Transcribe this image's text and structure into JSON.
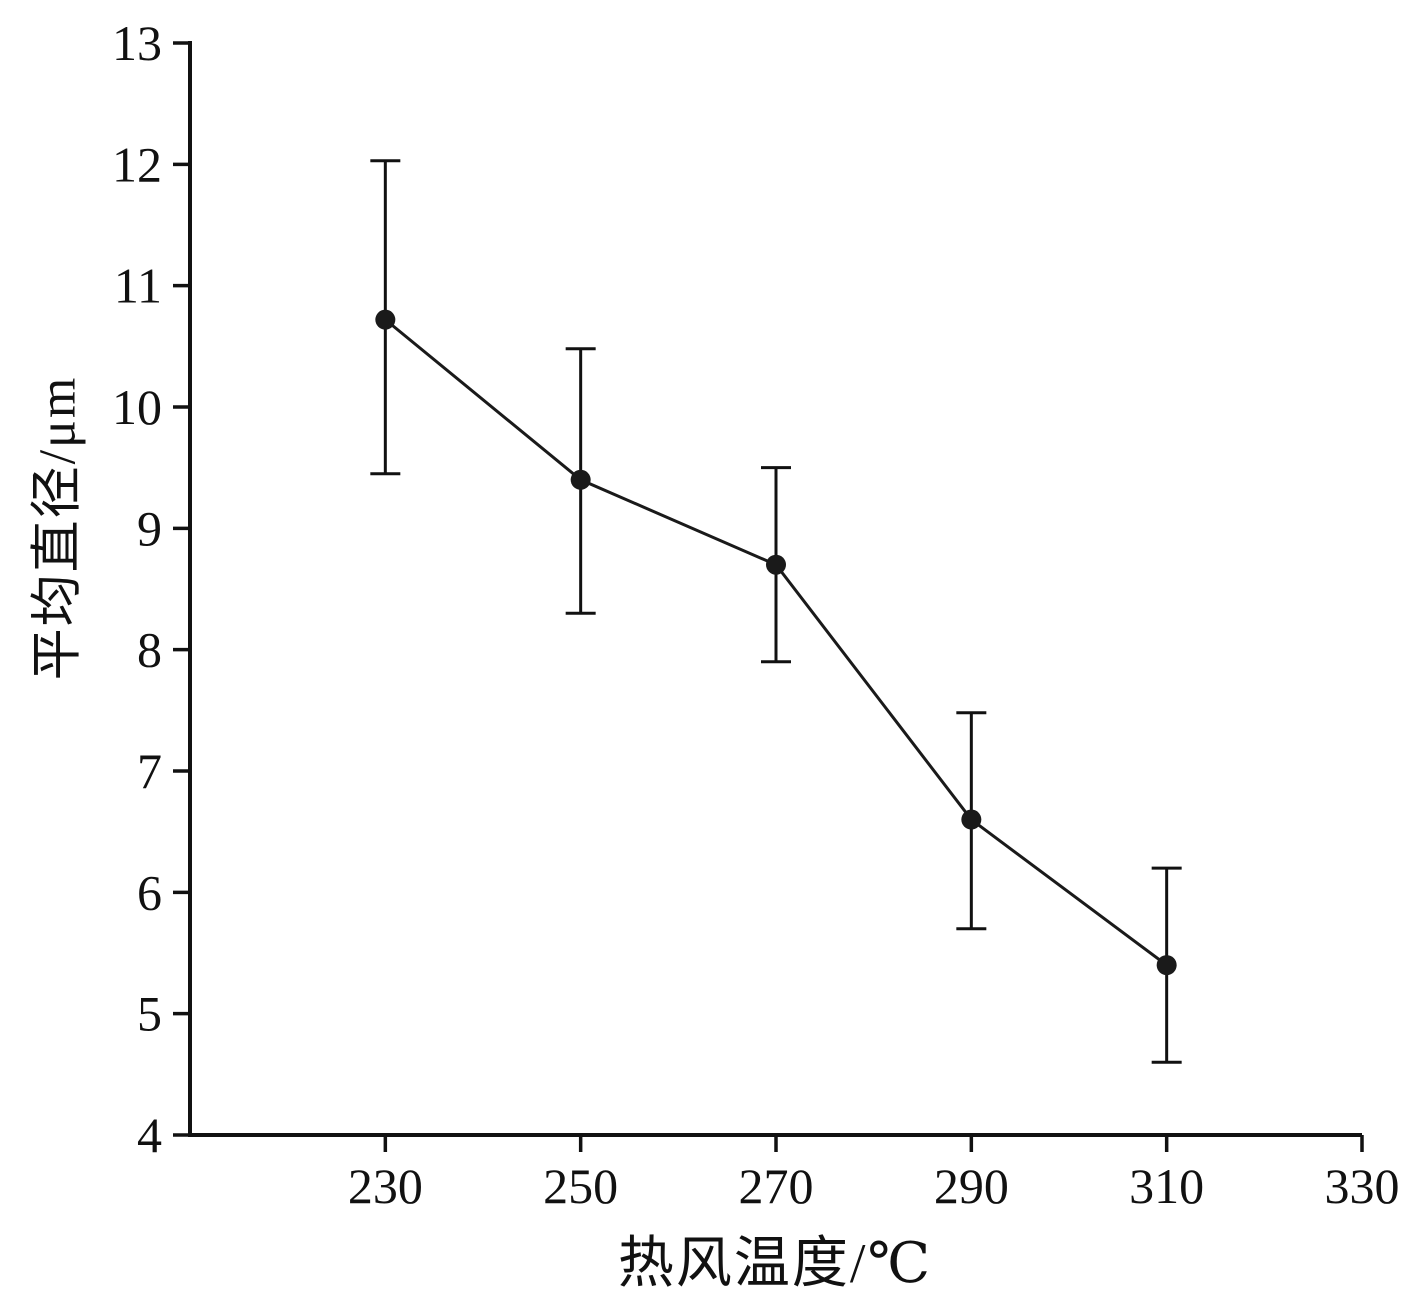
{
  "chart_data": {
    "type": "line",
    "title": "",
    "xlabel": "热风温度/℃",
    "ylabel": "平均直径/μm",
    "x": [
      230,
      250,
      270,
      290,
      310
    ],
    "series": [
      {
        "name": "平均直径",
        "values": [
          10.72,
          9.4,
          8.7,
          6.6,
          5.4
        ],
        "error_upper": [
          12.03,
          10.48,
          9.5,
          7.48,
          6.2
        ],
        "error_lower": [
          9.45,
          8.3,
          7.9,
          5.7,
          4.6
        ]
      }
    ],
    "xlim": [
      210,
      330
    ],
    "ylim": [
      4,
      13
    ],
    "xticks": [
      230,
      250,
      270,
      290,
      310,
      330
    ],
    "yticks": [
      4,
      5,
      6,
      7,
      8,
      9,
      10,
      11,
      12,
      13
    ],
    "grid": false,
    "legend_position": "none",
    "marker": "filled-circle",
    "line_color": "#1a1a1a",
    "marker_color": "#1a1a1a",
    "axis_color": "#111111",
    "background_color": "#ffffff"
  }
}
